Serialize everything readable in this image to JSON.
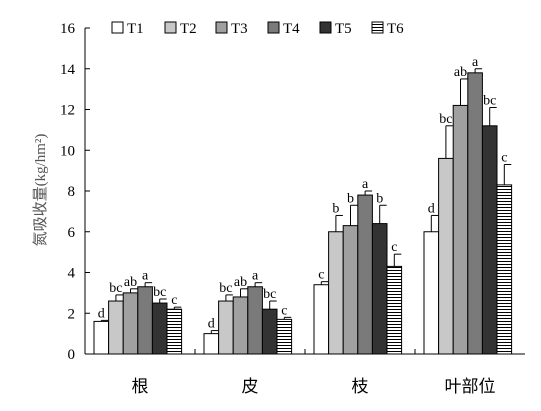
{
  "chart_data": {
    "type": "bar",
    "ylabel": "氮吸收量(kg/hm²)",
    "ylim": [
      0,
      16
    ],
    "yticks": [
      0,
      2,
      4,
      6,
      8,
      10,
      12,
      14,
      16
    ],
    "categories": [
      "根",
      "皮",
      "枝",
      "叶部位"
    ],
    "legend_position": "top",
    "grid": false,
    "series": [
      {
        "name": "T1",
        "color": "#ffffff",
        "values": [
          1.6,
          1.0,
          3.4,
          6.0
        ],
        "errors": [
          0.05,
          0.15,
          0.15,
          0.8
        ],
        "labels": [
          "d",
          "d",
          "c",
          "d"
        ]
      },
      {
        "name": "T2",
        "color": "#c8c8c8",
        "values": [
          2.6,
          2.6,
          6.0,
          9.6
        ],
        "errors": [
          0.3,
          0.3,
          0.8,
          1.6
        ],
        "labels": [
          "bc",
          "bc",
          "b",
          "bc"
        ]
      },
      {
        "name": "T3",
        "color": "#a0a0a0",
        "values": [
          3.0,
          2.8,
          6.3,
          12.2
        ],
        "errors": [
          0.2,
          0.4,
          1.0,
          1.3
        ],
        "labels": [
          "ab",
          "ab",
          "b",
          "ab"
        ]
      },
      {
        "name": "T4",
        "color": "#7a7a7a",
        "values": [
          3.3,
          3.3,
          7.8,
          13.8
        ],
        "errors": [
          0.2,
          0.2,
          0.2,
          0.2
        ],
        "labels": [
          "a",
          "a",
          "a",
          "a"
        ]
      },
      {
        "name": "T5",
        "color": "#333333",
        "values": [
          2.5,
          2.2,
          6.4,
          11.2
        ],
        "errors": [
          0.2,
          0.4,
          0.9,
          0.9
        ],
        "labels": [
          "bc",
          "bc",
          "b",
          "bc"
        ]
      },
      {
        "name": "T6",
        "color": "#ffffff",
        "pattern": "hlines",
        "values": [
          2.2,
          1.7,
          4.3,
          8.3
        ],
        "errors": [
          0.1,
          0.1,
          0.6,
          1.0
        ],
        "labels": [
          "c",
          "c",
          "c",
          "c"
        ]
      }
    ]
  }
}
